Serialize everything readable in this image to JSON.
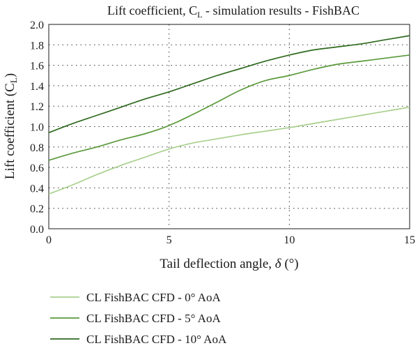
{
  "chart_data": {
    "type": "line",
    "title": {
      "prefix": "Lift coefficient, C",
      "sub": "L",
      "suffix": " - simulation results - FishBAC"
    },
    "xlabel": {
      "prefix": "Tail deflection angle, ",
      "symbol": "δ",
      "suffix": " (°)"
    },
    "ylabel": {
      "prefix": "Lift coefficient (C",
      "sub": "L",
      "suffix": ")"
    },
    "xlim": [
      0,
      15
    ],
    "ylim": [
      0,
      2.0
    ],
    "x_ticks": [
      0,
      5,
      10,
      15
    ],
    "x_tick_labels": [
      "0",
      "5",
      "10",
      "15"
    ],
    "y_ticks": [
      0,
      0.2,
      0.4,
      0.6,
      0.8,
      1.0,
      1.2,
      1.4,
      1.6,
      1.8,
      2.0
    ],
    "y_tick_labels": [
      "0.0",
      "0.2",
      "0.4",
      "0.6",
      "0.8",
      "1.0",
      "1.2",
      "1.4",
      "1.6",
      "1.8",
      "2.0"
    ],
    "grid": true,
    "legend_position": "bottom",
    "series": [
      {
        "name": "CL FishBAC CFD - 0° AoA",
        "color": "#a8d08d",
        "x": [
          0,
          1,
          2,
          3,
          4,
          5,
          6,
          7,
          8,
          9,
          10,
          11,
          12,
          13,
          14,
          15
        ],
        "y": [
          0.34,
          0.43,
          0.53,
          0.62,
          0.7,
          0.78,
          0.84,
          0.88,
          0.92,
          0.955,
          0.99,
          1.03,
          1.07,
          1.11,
          1.15,
          1.19
        ]
      },
      {
        "name": "CL FishBAC CFD - 5° AoA",
        "color": "#5a9a3c",
        "x": [
          0,
          1,
          2,
          3,
          4,
          5,
          6,
          7,
          8,
          9,
          10,
          11,
          12,
          13,
          14,
          15
        ],
        "y": [
          0.67,
          0.74,
          0.8,
          0.87,
          0.93,
          1.01,
          1.12,
          1.24,
          1.36,
          1.45,
          1.5,
          1.56,
          1.61,
          1.64,
          1.67,
          1.7
        ]
      },
      {
        "name": "CL FishBAC CFD - 10° AoA",
        "color": "#2e6a1e",
        "x": [
          0,
          1,
          2,
          3,
          4,
          5,
          6,
          7,
          8,
          9,
          10,
          11,
          12,
          13,
          14,
          15
        ],
        "y": [
          0.94,
          1.03,
          1.11,
          1.19,
          1.27,
          1.34,
          1.42,
          1.5,
          1.57,
          1.64,
          1.7,
          1.75,
          1.78,
          1.81,
          1.85,
          1.89
        ]
      }
    ]
  }
}
